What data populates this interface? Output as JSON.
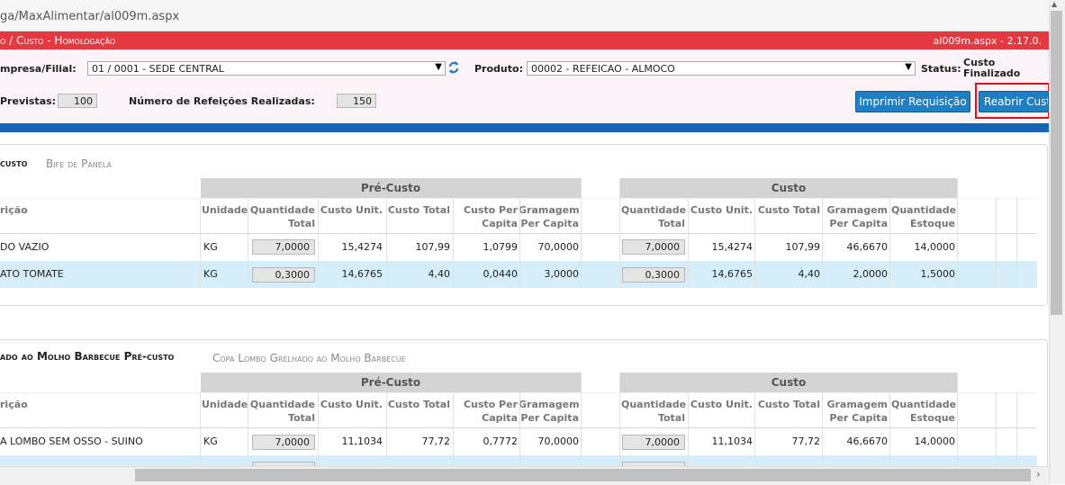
{
  "browser": {
    "url": "ga/MaxAlimentar/al009m.aspx"
  },
  "header": {
    "title": "o / Custo  - Homologação",
    "version": "al009m.aspx - 2.17.0."
  },
  "form": {
    "empresa_label": "mpresa/Filial:",
    "empresa_value": "01 / 0001 - SEDE CENTRAL",
    "produto_label": "Produto:",
    "produto_value": "00002 - REFEICAO - ALMOCO",
    "status_label": "Status:",
    "status_value": "Custo Finalizado",
    "previstas_label": "Previstas:",
    "previstas_value": "100",
    "realizadas_label": "Número de Refeições Realizadas:",
    "realizadas_value": "150",
    "print_button": "Imprimir Requisição",
    "reopen_button": "Reabrir Custo"
  },
  "icons": {
    "refresh": "refresh-icon",
    "dropdown": "chevron-down-icon"
  },
  "colors": {
    "titlebar": "#e53942",
    "accent": "#1e7fc2",
    "highlight_row": "#d6eefa",
    "reopen_border": "#e01020"
  },
  "sections": [
    {
      "title": "custo",
      "subtitle": "Bife de Panela",
      "group_pre": "Pré-Custo",
      "group_custo": "Custo",
      "columns": {
        "descricao": "rição",
        "unidade": "Unidade",
        "qtd_total": [
          "Quantidade",
          "Total"
        ],
        "custo_unit": "Custo Unit.",
        "custo_total": "Custo Total",
        "custo_per_capita": [
          "Custo Per",
          "Capita"
        ],
        "gramagem_per_capita": [
          "Gramagem",
          "Per Capita"
        ],
        "qtd_estoque": [
          "Quantidade",
          "Estoque"
        ]
      },
      "rows": [
        {
          "desc": "DO VAZIO",
          "un": "KG",
          "pre_qtd": "7,0000",
          "pre_unit": "15,4274",
          "pre_total": "107,99",
          "pre_capita": "1,0799",
          "pre_gram": "70,0000",
          "c_qtd": "7,0000",
          "c_unit": "15,4274",
          "c_total": "107,99",
          "c_gram": "46,6670",
          "c_estoque": "14,0000"
        },
        {
          "desc": "ATO TOMATE",
          "un": "KG",
          "pre_qtd": "0,3000",
          "pre_unit": "14,6765",
          "pre_total": "4,40",
          "pre_capita": "0,0440",
          "pre_gram": "3,0000",
          "c_qtd": "0,3000",
          "c_unit": "14,6765",
          "c_total": "4,40",
          "c_gram": "2,0000",
          "c_estoque": "1,5000"
        }
      ]
    },
    {
      "title": "ado ao Molho Barbecue Pré-custo",
      "subtitle": "Copa Lombo Grelhado ao Molho Barbecue",
      "group_pre": "Pré-Custo",
      "group_custo": "Custo",
      "columns": {
        "descricao": "rição",
        "unidade": "Unidade",
        "qtd_total": [
          "Quantidade",
          "Total"
        ],
        "custo_unit": "Custo Unit.",
        "custo_total": "Custo Total",
        "custo_per_capita": [
          "Custo Per",
          "Capita"
        ],
        "gramagem_per_capita": [
          "Gramagem",
          "Per Capita"
        ],
        "qtd_estoque": [
          "Quantidade",
          "Estoque"
        ]
      },
      "rows": [
        {
          "desc": "A LOMBO SEM OSSO - SUINO",
          "un": "KG",
          "pre_qtd": "7,0000",
          "pre_unit": "11,1034",
          "pre_total": "77,72",
          "pre_capita": "0,7772",
          "pre_gram": "70,0000",
          "c_qtd": "7,0000",
          "c_unit": "11,1034",
          "c_total": "77,72",
          "c_gram": "46,6670",
          "c_estoque": "14,0000"
        }
      ]
    }
  ]
}
